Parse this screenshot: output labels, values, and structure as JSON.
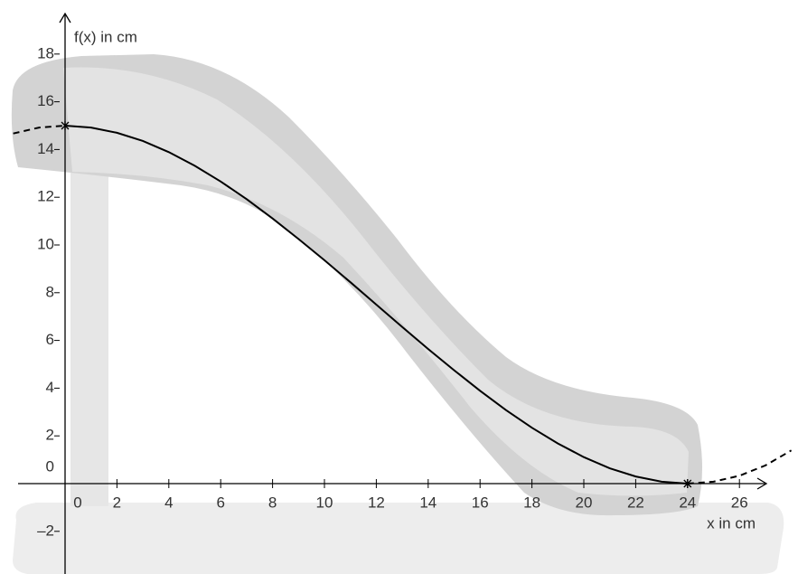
{
  "chart_data": {
    "type": "line",
    "x_label": "x in cm",
    "y_label": "f(x) in cm",
    "x": [
      -2,
      -1,
      0,
      1,
      2,
      3,
      4,
      5,
      6,
      7,
      8,
      9,
      10,
      11,
      12,
      13,
      14,
      15,
      16,
      17,
      18,
      19,
      20,
      21,
      22,
      23,
      24,
      25,
      26,
      27,
      28
    ],
    "series": [
      {
        "color": "#000000",
        "style": "solid",
        "markers": [
          2,
          26
        ],
        "values": [
          null,
          null,
          15,
          14.92,
          14.7,
          14.36,
          13.89,
          13.32,
          12.66,
          11.92,
          11.11,
          10.25,
          9.36,
          8.44,
          7.5,
          6.56,
          5.64,
          4.75,
          3.89,
          3.08,
          2.34,
          1.68,
          1.11,
          0.64,
          0.3,
          0.08,
          0,
          null,
          null,
          null,
          null
        ]
      },
      {
        "color": "#000000",
        "style": "dashed",
        "values": [
          14.67,
          14.92,
          15,
          null,
          null,
          null,
          null,
          null,
          null,
          null,
          null,
          null,
          null,
          null,
          null,
          null,
          null,
          null,
          null,
          null,
          null,
          null,
          null,
          null,
          null,
          null,
          0,
          0.08,
          0.33,
          0.76,
          1.39
        ]
      }
    ],
    "xlim": [
      -2.5,
      28.5
    ],
    "ylim": [
      -3.8,
      18.9
    ],
    "xticks": [
      0,
      2,
      4,
      6,
      8,
      10,
      12,
      14,
      16,
      18,
      20,
      22,
      24,
      26
    ],
    "yticks": [
      {
        "value": -2,
        "label": "–2"
      },
      0,
      2,
      4,
      6,
      8,
      10,
      12,
      14,
      16,
      18
    ]
  }
}
